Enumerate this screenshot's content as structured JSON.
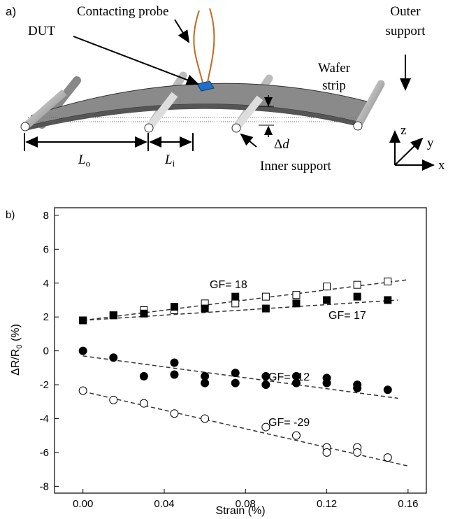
{
  "panel_a": {
    "label": "a)",
    "probe": "Contacting probe",
    "dut": "DUT",
    "outer_support": [
      "Outer",
      "support"
    ],
    "wafer_strip": [
      "Wafer",
      "strip"
    ],
    "inner_support": "Inner support",
    "delta_d": {
      "symbol": "Δ",
      "var": "d"
    },
    "l_outer": {
      "var": "L",
      "sub": "o"
    },
    "l_inner": {
      "var": "L",
      "sub": "i"
    },
    "axes": [
      "z",
      "y",
      "x"
    ]
  },
  "chart_data": {
    "type": "scatter",
    "panel_label": "b)",
    "x_label": "Strain (%)",
    "y_label": {
      "main": "ΔR/R",
      "sub": "0",
      "unit": " (%)"
    },
    "xlim": [
      -0.014,
      0.169
    ],
    "ylim": [
      -8.4,
      8.45
    ],
    "xticks": [
      {
        "value": 0,
        "label": "0.00"
      },
      {
        "value": 0.04,
        "label": "0.04"
      },
      {
        "value": 0.08,
        "label": "0.08"
      },
      {
        "value": 0.12,
        "label": "0.12"
      },
      {
        "value": 0.16,
        "label": "0.16"
      }
    ],
    "yticks": [
      8,
      6,
      4,
      2,
      0,
      -2,
      -4,
      -6,
      -8
    ],
    "series": [
      {
        "marker": "square",
        "filled": false,
        "color": "#000000",
        "x": [
          0,
          0.015,
          0.03,
          0.045,
          0.06,
          0.075,
          0.09,
          0.105,
          0.12,
          0.135,
          0.15
        ],
        "values": [
          1.8,
          2.1,
          2.4,
          2.4,
          2.8,
          2.8,
          3.2,
          3.3,
          3.8,
          3.9,
          4.1
        ]
      },
      {
        "marker": "square",
        "filled": true,
        "color": "#000000",
        "x": [
          0,
          0.015,
          0.03,
          0.045,
          0.06,
          0.075,
          0.09,
          0.105,
          0.12,
          0.135,
          0.15
        ],
        "values": [
          1.8,
          2.1,
          2.2,
          2.6,
          2.5,
          3.2,
          2.5,
          2.8,
          3.0,
          3.2,
          3.0
        ]
      },
      {
        "marker": "circle",
        "filled": true,
        "color": "#000000",
        "x": [
          0,
          0.015,
          0.03,
          0.045,
          0.045,
          0.06,
          0.06,
          0.075,
          0.075,
          0.09,
          0.09,
          0.105,
          0.105,
          0.12,
          0.12,
          0.135,
          0.135,
          0.15
        ],
        "values": [
          0,
          -0.4,
          -1.5,
          -0.7,
          -1.4,
          -1.5,
          -1.9,
          -1.3,
          -1.9,
          -1.5,
          -2.0,
          -1.5,
          -1.9,
          -1.6,
          -1.9,
          -2.0,
          -2.2,
          -2.3
        ]
      },
      {
        "marker": "circle",
        "filled": false,
        "color": "#000000",
        "x": [
          0,
          0.015,
          0.03,
          0.045,
          0.06,
          0.09,
          0.105,
          0.12,
          0.12,
          0.135,
          0.135,
          0.15
        ],
        "values": [
          -2.35,
          -2.9,
          -3.1,
          -3.7,
          -4.0,
          -4.5,
          -5.0,
          -5.7,
          -6.0,
          -5.7,
          -6.0,
          -6.3
        ]
      }
    ],
    "fits": [
      {
        "x": [
          0,
          0.16
        ],
        "values": [
          1.8,
          4.2
        ]
      },
      {
        "x": [
          0,
          0.155
        ],
        "values": [
          1.8,
          3.0
        ]
      },
      {
        "x": [
          0,
          0.155
        ],
        "values": [
          -0.3,
          -2.8
        ]
      },
      {
        "x": [
          0,
          0.16
        ],
        "values": [
          -2.4,
          -6.8
        ]
      }
    ],
    "annotations": [
      "GF= 18",
      "GF= 17",
      "GF= -12",
      "GF= -29"
    ]
  }
}
